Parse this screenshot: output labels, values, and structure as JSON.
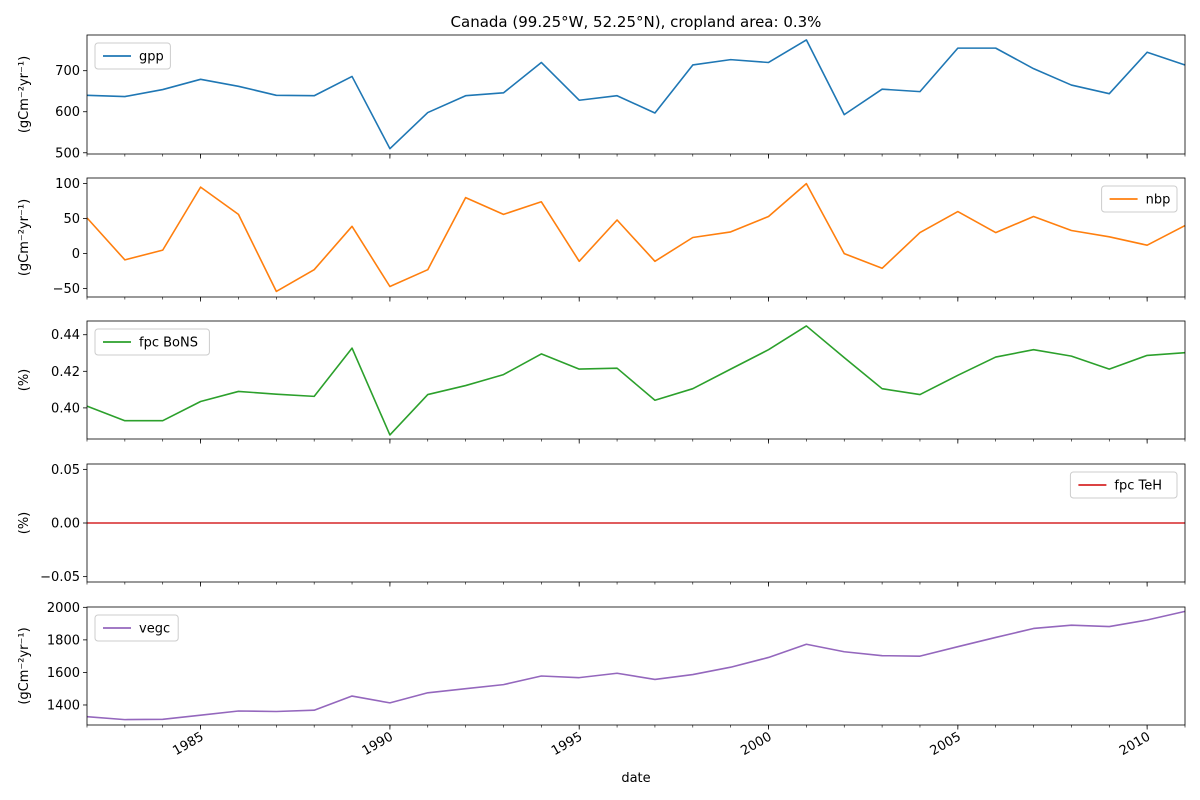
{
  "figure": {
    "title": "Canada (99.25°W, 52.25°N), cropland area: 0.3%",
    "xlabel": "date"
  },
  "chart_data": {
    "type": "line",
    "x_type": "year",
    "x": [
      1982,
      1983,
      1984,
      1985,
      1986,
      1987,
      1988,
      1989,
      1990,
      1991,
      1992,
      1993,
      1994,
      1995,
      1996,
      1997,
      1998,
      1999,
      2000,
      2001,
      2002,
      2003,
      2004,
      2005,
      2006,
      2007,
      2008,
      2009,
      2010,
      2011
    ],
    "xlim": [
      1982,
      2011
    ],
    "x_ticks": [
      "1985",
      "1990",
      "1995",
      "2000",
      "2005",
      "2010"
    ],
    "grid": false,
    "panels": [
      {
        "series": [
          {
            "name": "gpp",
            "color": "#1f77b4",
            "values": [
              640,
              637,
              654,
              679,
              662,
              640,
              639,
              686,
              510,
              598,
              639,
              646,
              720,
              628,
              639,
              597,
              714,
              727,
              720,
              775,
              593,
              655,
              649,
              755,
              755,
              705,
              665,
              644,
              745,
              714
            ]
          }
        ],
        "ylabel": "(gCm⁻²yr⁻¹)",
        "ylim": [
          497,
          787
        ],
        "yticks": [
          "500",
          "600",
          "700"
        ],
        "legend": "upper left"
      },
      {
        "series": [
          {
            "name": "nbp",
            "color": "#ff7f0e",
            "values": [
              51,
              -9,
              5,
              95,
              56,
              -54,
              -23,
              39,
              -47,
              -23,
              80,
              56,
              74,
              -11,
              48,
              -11,
              23,
              31,
              53,
              100,
              0,
              -21,
              30,
              60,
              30,
              53,
              33,
              24,
              12,
              40
            ]
          }
        ],
        "ylabel": "(gCm⁻²yr⁻¹)",
        "ylim": [
          -62,
          108
        ],
        "yticks": [
          "−50",
          "0",
          "50",
          "100"
        ],
        "legend": "upper right"
      },
      {
        "series": [
          {
            "name": "fpc BoNS",
            "color": "#2ca02c",
            "values": [
              0.401,
              0.393,
              0.393,
              0.4035,
              0.409,
              0.4075,
              0.4063,
              0.4327,
              0.3852,
              0.4073,
              0.4122,
              0.4182,
              0.4295,
              0.4212,
              0.4217,
              0.4042,
              0.4105,
              0.4212,
              0.4318,
              0.4448,
              0.4275,
              0.4105,
              0.4073,
              0.4178,
              0.4278,
              0.4318,
              0.4283,
              0.4212,
              0.4287,
              0.4302
            ]
          }
        ],
        "ylabel": "(%)",
        "ylim": [
          0.383,
          0.4475
        ],
        "yticks": [
          "0.40",
          "0.42",
          "0.44"
        ],
        "legend": "upper left"
      },
      {
        "series": [
          {
            "name": "fpc TeH",
            "color": "#d62728",
            "values": [
              0,
              0,
              0,
              0,
              0,
              0,
              0,
              0,
              0,
              0,
              0,
              0,
              0,
              0,
              0,
              0,
              0,
              0,
              0,
              0,
              0,
              0,
              0,
              0,
              0,
              0,
              0,
              0,
              0,
              0
            ]
          }
        ],
        "ylabel": "(%)",
        "ylim": [
          -0.055,
          0.055
        ],
        "yticks": [
          "−0.05",
          "0.00",
          "0.05"
        ],
        "legend": "upper right"
      },
      {
        "series": [
          {
            "name": "vegc",
            "color": "#9467bd",
            "values": [
              1328,
              1310,
              1312,
              1337,
              1363,
              1360,
              1368,
              1455,
              1413,
              1475,
              1500,
              1525,
              1578,
              1568,
              1595,
              1557,
              1587,
              1632,
              1692,
              1773,
              1727,
              1703,
              1700,
              1758,
              1815,
              1870,
              1890,
              1882,
              1922,
              1975
            ]
          }
        ],
        "ylabel": "(gCm⁻²yr⁻¹)",
        "ylim": [
          1277,
          2002
        ],
        "yticks": [
          "1400",
          "1600",
          "1800",
          "2000"
        ],
        "legend": "upper left"
      }
    ]
  }
}
